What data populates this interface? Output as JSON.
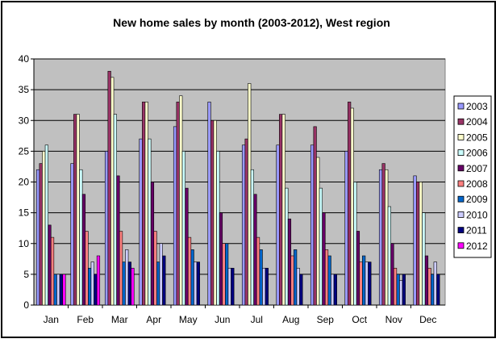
{
  "chart_data": {
    "type": "bar",
    "title": "New home sales by month (2003-2012), West region",
    "categories": [
      "Jan",
      "Feb",
      "Mar",
      "Apr",
      "May",
      "Jun",
      "Jul",
      "Aug",
      "Sep",
      "Oct",
      "Nov",
      "Dec"
    ],
    "ylim": [
      0,
      40
    ],
    "yticks": [
      0,
      5,
      10,
      15,
      20,
      25,
      30,
      35,
      40
    ],
    "ytick_labels": [
      "0",
      "5",
      "10",
      "15",
      "20",
      "25",
      "30",
      "35",
      "40"
    ],
    "grid": true,
    "legend": "right",
    "plot_background": "#c0c0c0",
    "series": [
      {
        "name": "2003",
        "color": "#9999ff",
        "values": [
          22,
          23,
          25,
          27,
          29,
          33,
          26,
          26,
          26,
          25,
          22,
          21
        ]
      },
      {
        "name": "2004",
        "color": "#993366",
        "values": [
          23,
          31,
          38,
          33,
          33,
          30,
          27,
          31,
          29,
          33,
          23,
          20
        ]
      },
      {
        "name": "2005",
        "color": "#ffffcc",
        "values": [
          25,
          31,
          37,
          33,
          34,
          30,
          36,
          31,
          24,
          32,
          22,
          20
        ]
      },
      {
        "name": "2006",
        "color": "#ccffff",
        "values": [
          26,
          22,
          31,
          27,
          25,
          25,
          22,
          19,
          19,
          20,
          16,
          15
        ]
      },
      {
        "name": "2007",
        "color": "#660066",
        "values": [
          13,
          18,
          21,
          20,
          19,
          15,
          18,
          14,
          15,
          12,
          10,
          8
        ]
      },
      {
        "name": "2008",
        "color": "#ff8080",
        "values": [
          11,
          12,
          12,
          12,
          11,
          10,
          11,
          8,
          9,
          7,
          6,
          6
        ]
      },
      {
        "name": "2009",
        "color": "#0066cc",
        "values": [
          5,
          6,
          7,
          7,
          9,
          10,
          9,
          9,
          8,
          8,
          5,
          5
        ]
      },
      {
        "name": "2010",
        "color": "#ccccff",
        "values": [
          5,
          7,
          9,
          10,
          7,
          6,
          6,
          6,
          5,
          7,
          4,
          7
        ]
      },
      {
        "name": "2011",
        "color": "#000080",
        "values": [
          5,
          5,
          7,
          8,
          7,
          6,
          6,
          5,
          5,
          7,
          5,
          5
        ]
      },
      {
        "name": "2012",
        "color": "#ff00ff",
        "values": [
          5,
          8,
          6,
          null,
          null,
          null,
          null,
          null,
          null,
          null,
          null,
          null
        ]
      }
    ]
  }
}
